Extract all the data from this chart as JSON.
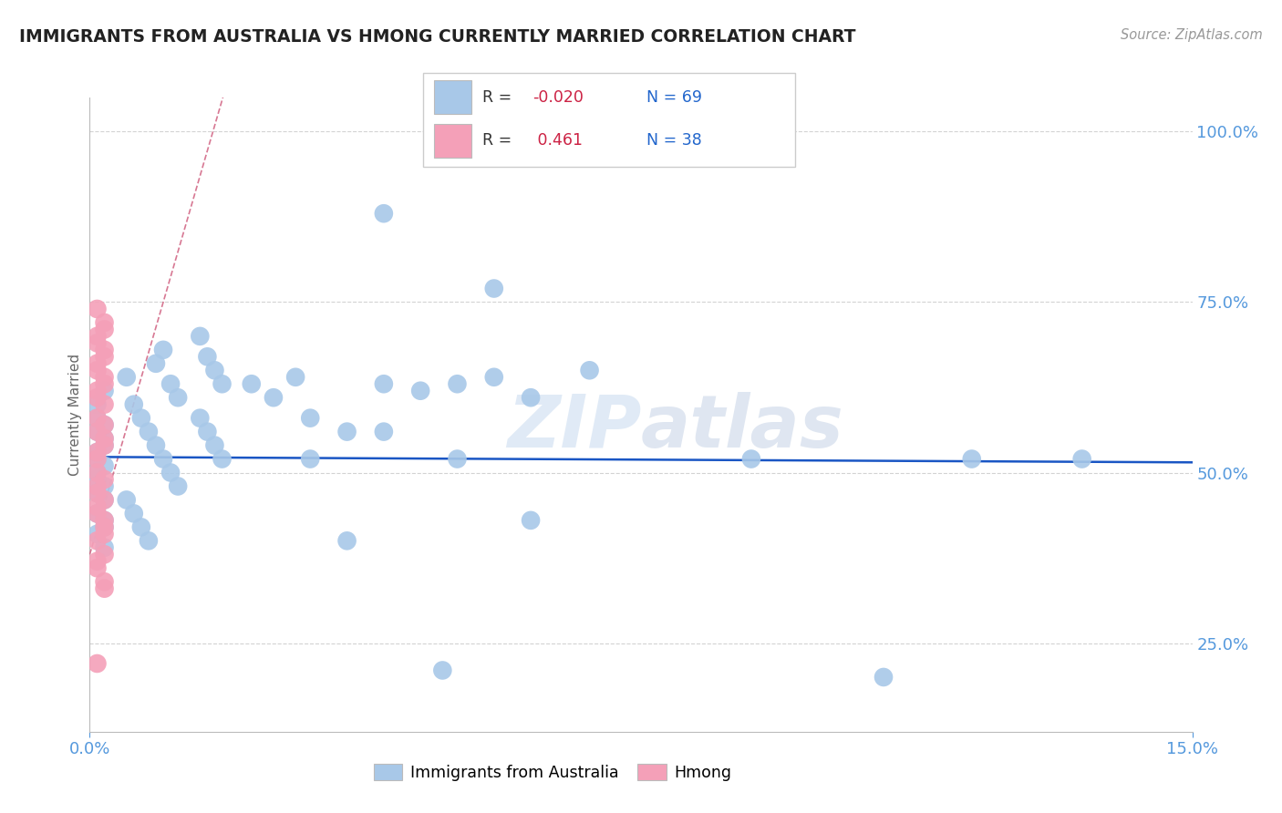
{
  "title": "IMMIGRANTS FROM AUSTRALIA VS HMONG CURRENTLY MARRIED CORRELATION CHART",
  "source": "Source: ZipAtlas.com",
  "ylabel": "Currently Married",
  "legend_label1": "Immigrants from Australia",
  "legend_label2": "Hmong",
  "R1_text": "-0.020",
  "N1": 69,
  "R2_text": "0.461",
  "N2": 38,
  "xmin": 0.0,
  "xmax": 0.15,
  "ymin": 0.12,
  "ymax": 1.05,
  "color_blue": "#a8c8e8",
  "color_pink": "#f4a0b8",
  "trendline_blue_color": "#1a56c4",
  "trendline_pink_color": "#d06080",
  "grid_color": "#c8c8c8",
  "axis_color": "#5599dd",
  "title_color": "#222222",
  "source_color": "#999999",
  "ylabel_color": "#666666",
  "watermark_color": "#ccddf0",
  "legend_border_color": "#cccccc",
  "R_color": "#cc2244",
  "N_color": "#2266cc"
}
